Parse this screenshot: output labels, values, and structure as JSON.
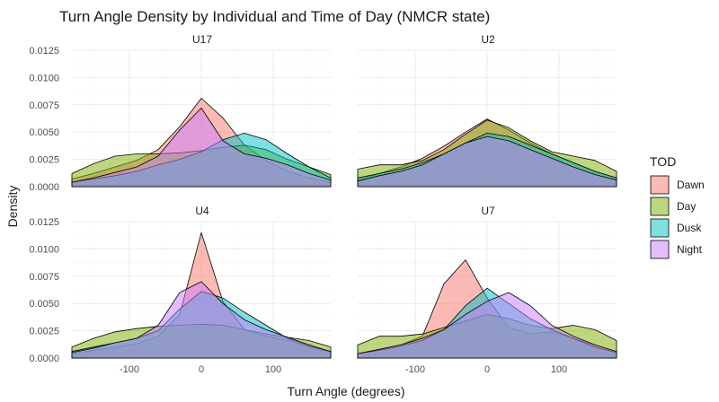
{
  "chart_data": {
    "type": "area",
    "title": "Turn Angle Density by Individual and Time of Day (NMCR state)",
    "xlabel": "Turn Angle (degrees)",
    "ylabel": "Density",
    "xlim": [
      -180,
      180
    ],
    "ylim": [
      0,
      0.0125
    ],
    "x_ticks": [
      -100,
      0,
      100
    ],
    "x_tick_labels": [
      "-100",
      "0",
      "100"
    ],
    "y_ticks": [
      0,
      0.0025,
      0.005,
      0.0075,
      0.01,
      0.0125
    ],
    "y_tick_labels": [
      "0.0000",
      "0.0025",
      "0.0050",
      "0.0075",
      "0.0100",
      "0.0125"
    ],
    "grid": true,
    "legend": {
      "title": "TOD",
      "position": "right",
      "entries": [
        {
          "name": "Dawn",
          "color": "#F8766D"
        },
        {
          "name": "Day",
          "color": "#7CAE00"
        },
        {
          "name": "Dusk",
          "color": "#00BFC4"
        },
        {
          "name": "Night",
          "color": "#C77CFF"
        }
      ]
    },
    "x": [
      -180,
      -150,
      -120,
      -90,
      -60,
      -30,
      0,
      30,
      60,
      90,
      120,
      150,
      180
    ],
    "panels": [
      {
        "strip": "U17",
        "series": [
          {
            "name": "Dawn",
            "values": [
              0.0007,
              0.0012,
              0.0018,
              0.0024,
              0.0034,
              0.0055,
              0.0081,
              0.0063,
              0.0038,
              0.0024,
              0.0014,
              0.0008,
              0.0004
            ]
          },
          {
            "name": "Day",
            "values": [
              0.0012,
              0.0021,
              0.0028,
              0.003,
              0.003,
              0.0031,
              0.0033,
              0.0036,
              0.0038,
              0.0034,
              0.0025,
              0.0018,
              0.0011
            ]
          },
          {
            "name": "Dusk",
            "values": [
              0.0004,
              0.0007,
              0.001,
              0.0014,
              0.002,
              0.0025,
              0.0032,
              0.0043,
              0.0049,
              0.0043,
              0.003,
              0.0018,
              0.0008
            ]
          },
          {
            "name": "Night",
            "values": [
              0.0004,
              0.0008,
              0.0013,
              0.0018,
              0.0028,
              0.0052,
              0.0072,
              0.0042,
              0.003,
              0.0026,
              0.002,
              0.0012,
              0.0006
            ]
          }
        ]
      },
      {
        "strip": "U2",
        "series": [
          {
            "name": "Dawn",
            "values": [
              0.0006,
              0.0012,
              0.0018,
              0.0026,
              0.0037,
              0.005,
              0.0062,
              0.0052,
              0.004,
              0.003,
              0.0022,
              0.0014,
              0.0008
            ]
          },
          {
            "name": "Day",
            "values": [
              0.0016,
              0.002,
              0.002,
              0.0024,
              0.0034,
              0.0048,
              0.0061,
              0.0054,
              0.0042,
              0.0032,
              0.0028,
              0.0024,
              0.0014
            ]
          },
          {
            "name": "Dusk",
            "values": [
              0.0008,
              0.0012,
              0.0016,
              0.0022,
              0.003,
              0.004,
              0.0049,
              0.0046,
              0.0038,
              0.003,
              0.0022,
              0.0014,
              0.0008
            ]
          },
          {
            "name": "Night",
            "values": [
              0.0005,
              0.001,
              0.0014,
              0.002,
              0.003,
              0.004,
              0.0046,
              0.0042,
              0.0034,
              0.0026,
              0.0018,
              0.0011,
              0.0006
            ]
          }
        ]
      },
      {
        "strip": "U4",
        "series": [
          {
            "name": "Dawn",
            "values": [
              0.0004,
              0.0007,
              0.001,
              0.0013,
              0.002,
              0.004,
              0.0115,
              0.0052,
              0.0026,
              0.002,
              0.0016,
              0.001,
              0.0005
            ]
          },
          {
            "name": "Day",
            "values": [
              0.001,
              0.0018,
              0.0024,
              0.0027,
              0.0029,
              0.003,
              0.0031,
              0.003,
              0.0026,
              0.0022,
              0.0019,
              0.0016,
              0.001
            ]
          },
          {
            "name": "Dusk",
            "values": [
              0.0006,
              0.001,
              0.0014,
              0.0018,
              0.0025,
              0.0045,
              0.0061,
              0.0055,
              0.0042,
              0.003,
              0.0018,
              0.0011,
              0.0006
            ]
          },
          {
            "name": "Night",
            "values": [
              0.0005,
              0.0009,
              0.0014,
              0.0018,
              0.003,
              0.006,
              0.007,
              0.005,
              0.0035,
              0.0026,
              0.0019,
              0.0012,
              0.0006
            ]
          }
        ]
      },
      {
        "strip": "U7",
        "series": [
          {
            "name": "Dawn",
            "values": [
              0.0004,
              0.0008,
              0.0012,
              0.002,
              0.0068,
              0.009,
              0.0055,
              0.0028,
              0.0022,
              0.0024,
              0.0018,
              0.0012,
              0.0006
            ]
          },
          {
            "name": "Day",
            "values": [
              0.0012,
              0.002,
              0.002,
              0.0022,
              0.0028,
              0.0034,
              0.004,
              0.0036,
              0.003,
              0.0027,
              0.003,
              0.0026,
              0.0016
            ]
          },
          {
            "name": "Dusk",
            "values": [
              0.0004,
              0.0007,
              0.0011,
              0.0016,
              0.0026,
              0.0048,
              0.0064,
              0.005,
              0.0036,
              0.0026,
              0.0018,
              0.001,
              0.0005
            ]
          },
          {
            "name": "Night",
            "values": [
              0.0004,
              0.0008,
              0.0012,
              0.0018,
              0.0026,
              0.004,
              0.0052,
              0.006,
              0.0048,
              0.003,
              0.002,
              0.0012,
              0.0006
            ]
          }
        ]
      }
    ]
  }
}
